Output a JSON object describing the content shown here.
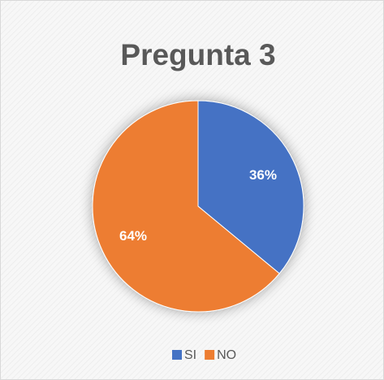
{
  "chart_data": {
    "type": "pie",
    "title": "Pregunta 3",
    "categories": [
      "SI",
      "NO"
    ],
    "values": [
      36,
      64
    ],
    "value_labels": [
      "36%",
      "64%"
    ],
    "colors": [
      "#4472c4",
      "#ed7d31"
    ],
    "legend": "bottom"
  }
}
